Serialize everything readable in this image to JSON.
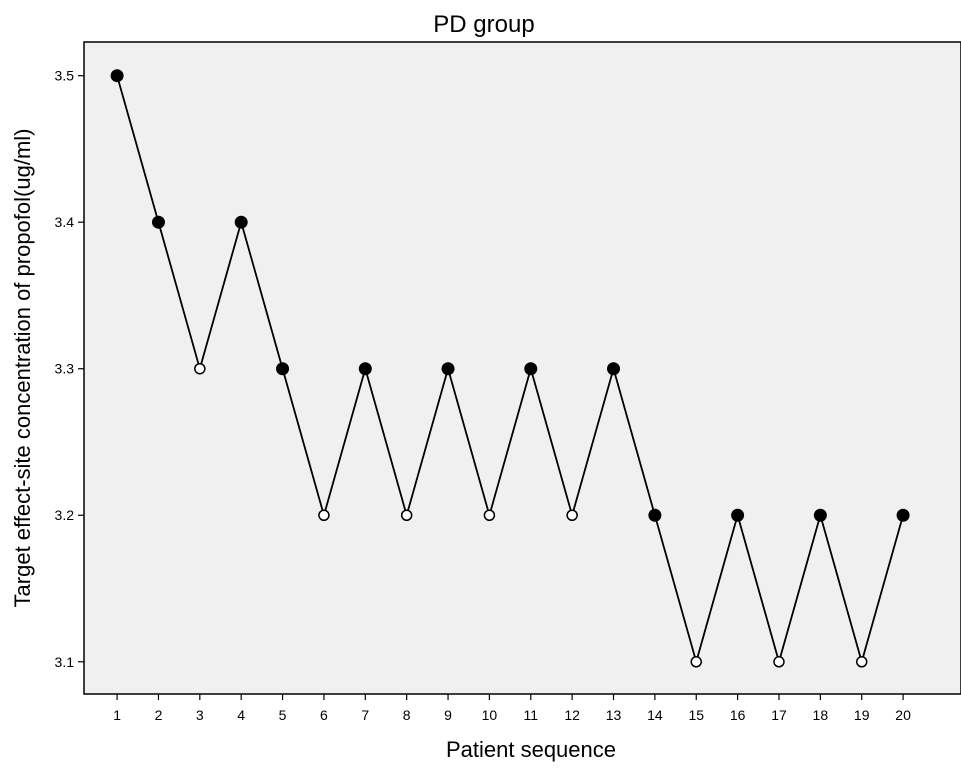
{
  "chart_data": {
    "type": "line",
    "title": "PD group",
    "xlabel": "Patient sequence",
    "ylabel": "Target effect-site concentration of propofol(ug/ml)",
    "x": [
      1,
      2,
      3,
      4,
      5,
      6,
      7,
      8,
      9,
      10,
      11,
      12,
      13,
      14,
      15,
      16,
      17,
      18,
      19,
      20
    ],
    "x_ticks": [
      "1",
      "2",
      "3",
      "4",
      "5",
      "6",
      "7",
      "8",
      "9",
      "10",
      "11",
      "12",
      "13",
      "14",
      "15",
      "16",
      "17",
      "18",
      "19",
      "20"
    ],
    "y_ticks": [
      "3.1",
      "3.2",
      "3.3",
      "3.4",
      "3.5"
    ],
    "series": [
      {
        "values": [
          3.5,
          3.4,
          3.3,
          3.4,
          3.3,
          3.2,
          3.3,
          3.2,
          3.3,
          3.2,
          3.3,
          3.2,
          3.3,
          3.2,
          3.1,
          3.2,
          3.1,
          3.2,
          3.1,
          3.2
        ],
        "filled": [
          true,
          true,
          false,
          true,
          true,
          false,
          true,
          false,
          true,
          false,
          true,
          false,
          true,
          true,
          false,
          true,
          false,
          true,
          false,
          true
        ]
      }
    ],
    "xlim": [
      0.2,
      21.4
    ],
    "ylim": [
      3.078,
      3.523
    ],
    "grid": false,
    "colors": {
      "plot_background": "#f0f0f0",
      "line": "#000000",
      "marker": "#000000"
    }
  }
}
